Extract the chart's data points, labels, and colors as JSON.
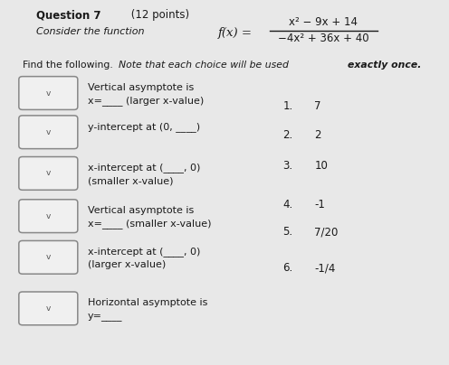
{
  "title_bold": "Question 7",
  "title_normal": " (12 points)",
  "func_prefix": "Consider the function ",
  "numerator": "x² − 9x + 14",
  "denominator": "−4x² + 36x + 40",
  "instruction_normal": "Find the following. ",
  "instruction_italic": "Note that each choice will be used ",
  "instruction_bold_italic": "exactly once.",
  "rows": [
    [
      "Vertical asymptote is",
      "x=____ (larger x-value)"
    ],
    [
      "y-intercept at (0, ____)"
    ],
    [
      "x-intercept at (____, 0)",
      "(smaller x-value)"
    ],
    [
      "Vertical asymptote is",
      "x=____ (smaller x-value)"
    ],
    [
      "x-intercept at (____, 0)",
      "(larger x-value)"
    ],
    [
      "Horizontal asymptote is",
      "y=____"
    ]
  ],
  "choices": [
    [
      "1.",
      "7"
    ],
    [
      "2.",
      "2"
    ],
    [
      "3.",
      "10"
    ],
    [
      "4.",
      "-1"
    ],
    [
      "5.",
      "7/20"
    ],
    [
      "6.",
      "-1/4"
    ]
  ],
  "bg_color": "#e8e8e8",
  "box_facecolor": "#f0f0f0",
  "box_edgecolor": "#888888",
  "text_color": "#1a1a1a",
  "chevron_color": "#555555"
}
